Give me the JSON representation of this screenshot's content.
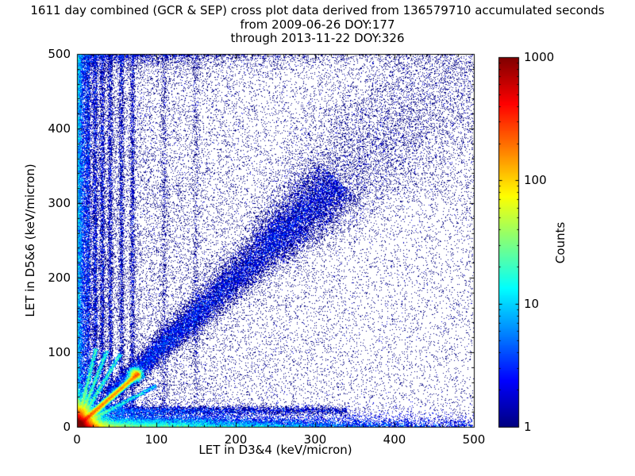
{
  "chart_data": {
    "type": "heatmap",
    "title_lines": [
      "1611 day combined (GCR & SEP) cross plot data derived from 136579710 accumulated seconds",
      "from 2009-06-26 DOY:177",
      "through 2013-11-22 DOY:326"
    ],
    "xlabel": "LET in D3&4 (keV/micron)",
    "ylabel": "LET in D5&6 (keV/micron)",
    "xlim": [
      0,
      500
    ],
    "ylim": [
      0,
      500
    ],
    "x_ticks": [
      0,
      100,
      200,
      300,
      400,
      500
    ],
    "y_ticks": [
      0,
      100,
      200,
      300,
      400,
      500
    ],
    "x_minor_step": 20,
    "y_minor_step": 20,
    "grid": false,
    "background_color": "#ffffff",
    "colorbar": {
      "label": "Counts",
      "scale": "log",
      "min": 1,
      "max": 1000,
      "ticks": [
        1,
        10,
        100,
        1000
      ],
      "colormap": "jet"
    },
    "seed": 177326,
    "density_features": [
      {
        "name": "origin-hotspot",
        "kind": "exp2d",
        "sx": 7,
        "sy": 7,
        "n": 60000,
        "w": 3
      },
      {
        "name": "bottom-edge-band",
        "kind": "band_x",
        "x_decay": 150,
        "y_scale": 6,
        "n": 24000,
        "w": 2
      },
      {
        "name": "left-edge-column",
        "kind": "band_y",
        "x_scale": 5,
        "y0": 0,
        "y1": 500,
        "n": 15000,
        "w": 2
      },
      {
        "name": "bright-diagonal-ridge",
        "kind": "ridge",
        "x0": 2,
        "y0": 2,
        "x1": 78,
        "y1": 72,
        "sigma": 1.8,
        "n": 16000,
        "w": 5,
        "bias": 1.3
      },
      {
        "name": "knee-blob",
        "kind": "gauss2d",
        "cx": 74,
        "cy": 70,
        "sx": 4,
        "sy": 4,
        "n": 2600,
        "w": 4
      },
      {
        "name": "fan-line-steep",
        "kind": "ridge",
        "x0": 0,
        "y0": 0,
        "x1": 24,
        "y1": 105,
        "sigma": 1.4,
        "n": 2600,
        "w": 4,
        "bias": 1.6
      },
      {
        "name": "fan-line-mid",
        "kind": "ridge",
        "x0": 0,
        "y0": 0,
        "x1": 38,
        "y1": 102,
        "sigma": 1.4,
        "n": 2600,
        "w": 4,
        "bias": 1.6
      },
      {
        "name": "fan-line-shallow",
        "kind": "ridge",
        "x0": 0,
        "y0": 0,
        "x1": 55,
        "y1": 98,
        "sigma": 1.4,
        "n": 2400,
        "w": 4,
        "bias": 1.6
      },
      {
        "name": "fan-line-low",
        "kind": "ridge",
        "x0": 0,
        "y0": 0,
        "x1": 100,
        "y1": 55,
        "sigma": 1.5,
        "n": 2600,
        "w": 3,
        "bias": 1.6
      },
      {
        "name": "mid-diagonal-band",
        "kind": "ridge_fan",
        "t0": 40,
        "t1": 330,
        "sigma0": 5,
        "sigma_slope": 0.05,
        "n": 22000,
        "w": 1
      },
      {
        "name": "upper-diagonal-fan",
        "kind": "ridge_fan",
        "t0": 240,
        "t1": 540,
        "sigma0": 16,
        "sigma_slope": 0.22,
        "n": 11000,
        "w": 1
      },
      {
        "name": "vertical-stripe-1",
        "kind": "vstripe",
        "x": 14,
        "sigma": 1.8,
        "y0": 20,
        "y1": 500,
        "n": 3200,
        "w": 1
      },
      {
        "name": "vertical-stripe-2",
        "kind": "vstripe",
        "x": 23,
        "sigma": 1.8,
        "y0": 20,
        "y1": 500,
        "n": 3000,
        "w": 1
      },
      {
        "name": "vertical-stripe-3",
        "kind": "vstripe",
        "x": 32,
        "sigma": 1.8,
        "y0": 20,
        "y1": 500,
        "n": 2800,
        "w": 1
      },
      {
        "name": "vertical-stripe-4",
        "kind": "vstripe",
        "x": 42,
        "sigma": 1.8,
        "y0": 20,
        "y1": 500,
        "n": 2600,
        "w": 1
      },
      {
        "name": "vertical-stripe-5",
        "kind": "vstripe",
        "x": 56,
        "sigma": 1.8,
        "y0": 20,
        "y1": 500,
        "n": 2400,
        "w": 1
      },
      {
        "name": "vertical-stripe-6",
        "kind": "vstripe",
        "x": 70,
        "sigma": 1.8,
        "y0": 20,
        "y1": 500,
        "n": 2200,
        "w": 1
      },
      {
        "name": "vertical-stripe-7",
        "kind": "vstripe",
        "x": 110,
        "sigma": 2.2,
        "y0": 30,
        "y1": 500,
        "n": 900,
        "w": 1
      },
      {
        "name": "vertical-stripe-8",
        "kind": "vstripe",
        "x": 150,
        "sigma": 2.2,
        "y0": 30,
        "y1": 500,
        "n": 700,
        "w": 1
      },
      {
        "name": "horizontal-band",
        "kind": "hband",
        "y": 22,
        "sigma": 3,
        "x0": 0,
        "x1": 340,
        "n": 6000,
        "w": 1,
        "bias": 2
      },
      {
        "name": "background-noise",
        "kind": "uniform",
        "x0": 0,
        "x1": 500,
        "y0": 0,
        "y1": 500,
        "n": 16000,
        "w": 1
      },
      {
        "name": "left-half-noise",
        "kind": "expx_uniform_y",
        "scale_x": 120,
        "y0": 0,
        "y1": 500,
        "n": 12000,
        "w": 1
      },
      {
        "name": "top-edge-band",
        "kind": "edge_top",
        "x_decay": 140,
        "y_scale": 7,
        "n": 2500,
        "w": 1
      }
    ]
  }
}
